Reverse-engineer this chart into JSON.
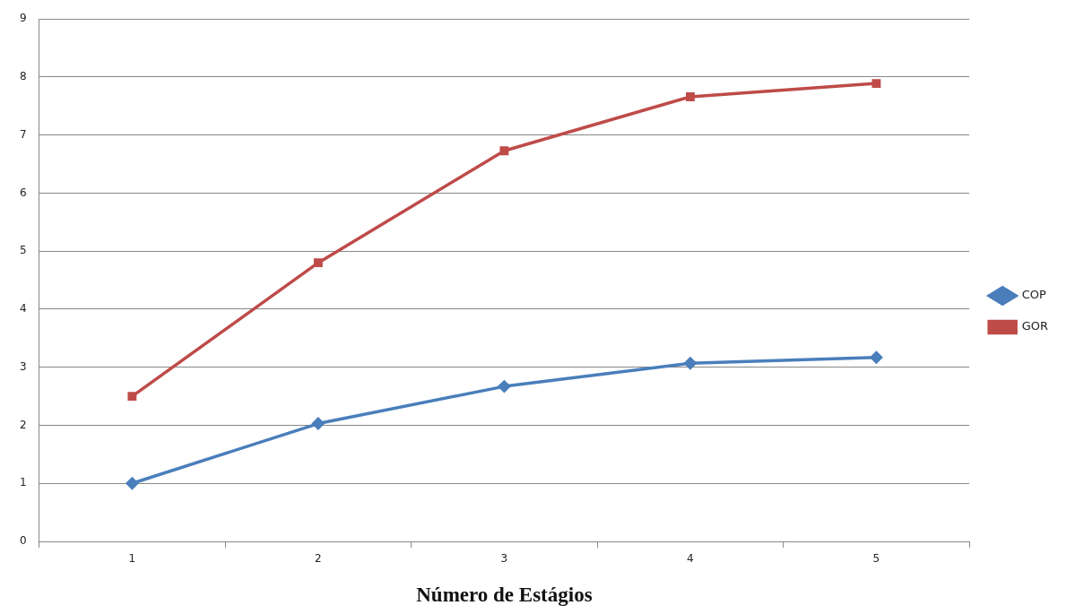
{
  "chart_data": {
    "type": "line",
    "xlabel": "Número de Estágios",
    "categories": [
      "1",
      "2",
      "3",
      "4",
      "5"
    ],
    "series": [
      {
        "name": "COP",
        "color": "#4a7ebb",
        "marker": "diamond",
        "values": [
          1.0,
          2.03,
          2.67,
          3.07,
          3.17
        ]
      },
      {
        "name": "GOR",
        "color": "#be4b48",
        "marker": "square",
        "values": [
          2.5,
          4.8,
          6.73,
          7.66,
          7.89
        ]
      }
    ],
    "ylim": [
      0,
      9
    ],
    "yticks": [
      0,
      1,
      2,
      3,
      4,
      5,
      6,
      7,
      8,
      9
    ],
    "grid": "y",
    "legend": "right",
    "line_style": "solid"
  }
}
